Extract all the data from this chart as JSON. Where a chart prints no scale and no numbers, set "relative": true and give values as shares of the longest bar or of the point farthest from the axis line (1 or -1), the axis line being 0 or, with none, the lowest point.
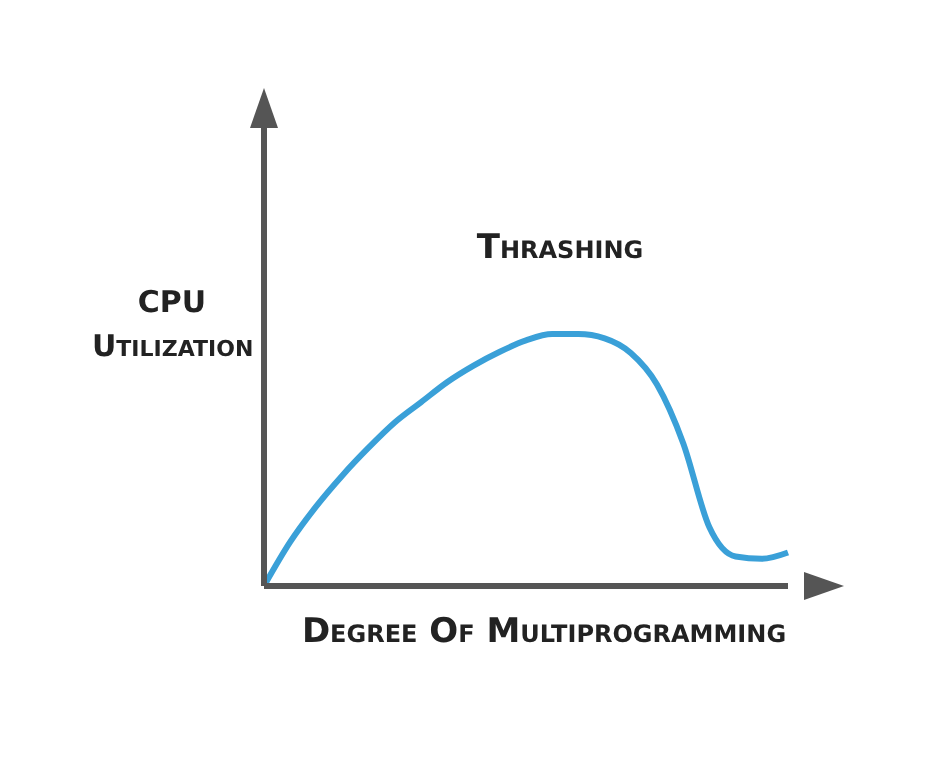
{
  "chart_data": {
    "type": "line",
    "relative": true,
    "xlabel": "Degree Of Multiprogramming",
    "ylabel": "CPU Utilization",
    "annotations": [
      "Thrashing"
    ],
    "categories": [
      null,
      null,
      null,
      null,
      null,
      null,
      null,
      null,
      null,
      null,
      null,
      null,
      null,
      null,
      null,
      null,
      null,
      null,
      null,
      null,
      null
    ],
    "series": [
      {
        "color": "#3aa0d8",
        "values": [
          0,
          0.175,
          0.317,
          0.44,
          0.55,
          0.65,
          0.73,
          0.81,
          0.875,
          0.93,
          0.975,
          1,
          1,
          0.983,
          0.925,
          0.8,
          0.567,
          0.233,
          0.117,
          0.108,
          0.133
        ]
      }
    ],
    "grid": false,
    "legend": false,
    "marker": "none",
    "line_style": "solid"
  }
}
